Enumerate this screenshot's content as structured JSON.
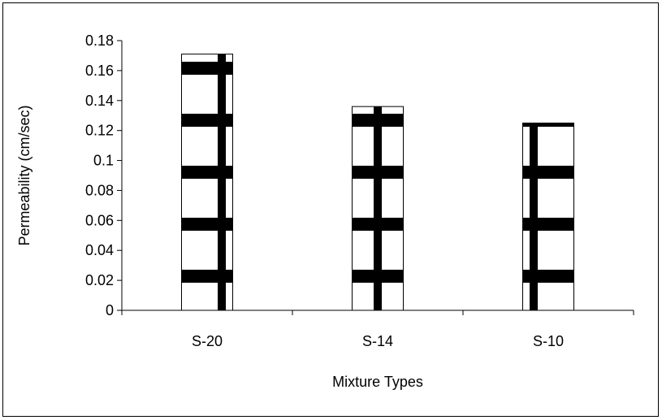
{
  "chart_data": {
    "type": "bar",
    "title": "",
    "xlabel": "Mixture Types",
    "ylabel": "Permeability (cm/sec)",
    "categories": [
      "S-20",
      "S-14",
      "S-10"
    ],
    "values": [
      0.171,
      0.136,
      0.125
    ],
    "ylim": [
      0,
      0.18
    ],
    "yticks": [
      0,
      0.02,
      0.04,
      0.06,
      0.08,
      0.1,
      0.12,
      0.14,
      0.16,
      0.18
    ],
    "ytick_labels": [
      "0",
      "0.02",
      "0.04",
      "0.06",
      "0.08",
      "0.1",
      "0.12",
      "0.14",
      "0.16",
      "0.18"
    ],
    "grid": false,
    "legend": "none",
    "bar_fill": "#ffffff",
    "bar_pattern_color": "#000000"
  }
}
